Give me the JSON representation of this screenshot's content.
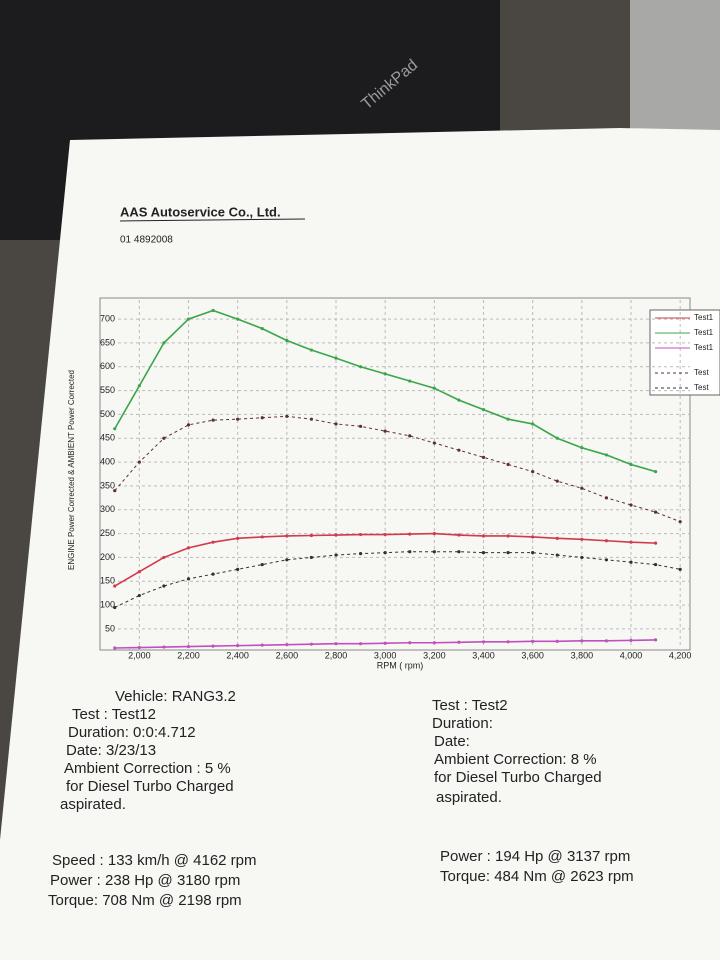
{
  "laptop_brand": "ThinkPad",
  "header": {
    "company": "AAS Autoservice Co., Ltd.",
    "phone": "01 4892008"
  },
  "chart_data": {
    "type": "line",
    "y_label": "ENGINE Power Corrected & AMBIENT Power Corrected",
    "x_label": "RPM ( rpm)",
    "x": [
      1900,
      2000,
      2100,
      2200,
      2300,
      2400,
      2500,
      2600,
      2700,
      2800,
      2900,
      3000,
      3100,
      3200,
      3300,
      3400,
      3500,
      3600,
      3700,
      3800,
      3900,
      4000,
      4100,
      4200
    ],
    "xlim": [
      1840,
      4240
    ],
    "ylim": [
      10,
      740
    ],
    "xticks": [
      {
        "value": 2000,
        "label": "2,000"
      },
      {
        "value": 2200,
        "label": "2,200"
      },
      {
        "value": 2400,
        "label": "2,400"
      },
      {
        "value": 2600,
        "label": "2,600"
      },
      {
        "value": 2800,
        "label": "2,800"
      },
      {
        "value": 3000,
        "label": "3,000"
      },
      {
        "value": 3200,
        "label": "3,200"
      },
      {
        "value": 3400,
        "label": "3,400"
      },
      {
        "value": 3600,
        "label": "3,600"
      },
      {
        "value": 3800,
        "label": "3,800"
      },
      {
        "value": 4000,
        "label": "4,000"
      },
      {
        "value": 4200,
        "label": "4,200"
      }
    ],
    "yticks": [
      50,
      100,
      150,
      200,
      250,
      300,
      350,
      400,
      450,
      500,
      550,
      600,
      650,
      700
    ],
    "grid": true,
    "series": [
      {
        "name": "Test1",
        "color": "#d03a4a",
        "dash": false,
        "values": [
          140,
          170,
          200,
          220,
          232,
          240,
          243,
          245,
          246,
          247,
          248,
          248,
          249,
          250,
          247,
          245,
          245,
          243,
          240,
          238,
          235,
          232,
          230,
          null
        ]
      },
      {
        "name": "Test1",
        "color": "#3aa64a",
        "dash": false,
        "values": [
          470,
          560,
          650,
          700,
          718,
          700,
          680,
          655,
          635,
          618,
          600,
          585,
          570,
          555,
          530,
          510,
          490,
          480,
          450,
          430,
          415,
          395,
          380,
          null
        ]
      },
      {
        "name": "Test1",
        "color": "#c050c0",
        "dash": false,
        "values": [
          10,
          11,
          12,
          13,
          14,
          15,
          16,
          17,
          18,
          19,
          19,
          20,
          21,
          21,
          22,
          23,
          23,
          24,
          24,
          25,
          25,
          26,
          27,
          null
        ]
      },
      {
        "name": "Test",
        "color": "#5a3030",
        "dash": true,
        "values": [
          340,
          400,
          450,
          478,
          488,
          490,
          493,
          496,
          490,
          480,
          475,
          465,
          455,
          440,
          425,
          410,
          395,
          380,
          360,
          345,
          325,
          310,
          295,
          275
        ]
      },
      {
        "name": "Test",
        "color": "#303030",
        "dash": true,
        "values": [
          95,
          120,
          140,
          155,
          165,
          175,
          185,
          195,
          200,
          205,
          208,
          210,
          212,
          212,
          212,
          210,
          210,
          210,
          205,
          200,
          195,
          190,
          185,
          175
        ]
      }
    ]
  },
  "test_left": {
    "vehicle": "Vehicle: RANG3.2",
    "test": "Test   : Test12",
    "duration": "Duration: 0:0:4.712",
    "date": "Date:  3/23/13",
    "ambient": "Ambient Correction : 5 %",
    "fuel": "for Diesel Turbo Charged",
    "aspirated": "aspirated."
  },
  "test_right": {
    "test": "Test   : Test2",
    "duration": "Duration:",
    "date": "Date:",
    "ambient": "Ambient Correction: 8 %",
    "fuel": " for Diesel Turbo Charged",
    "aspirated": "aspirated."
  },
  "results_left": [
    "Speed : 133 km/h @ 4162 rpm",
    "Power : 238 Hp @ 3180 rpm",
    "Torque: 708 Nm @ 2198 rpm"
  ],
  "results_right": [
    "Power : 194 Hp @ 3137 rpm",
    "Torque: 484 Nm @ 2623 rpm"
  ]
}
